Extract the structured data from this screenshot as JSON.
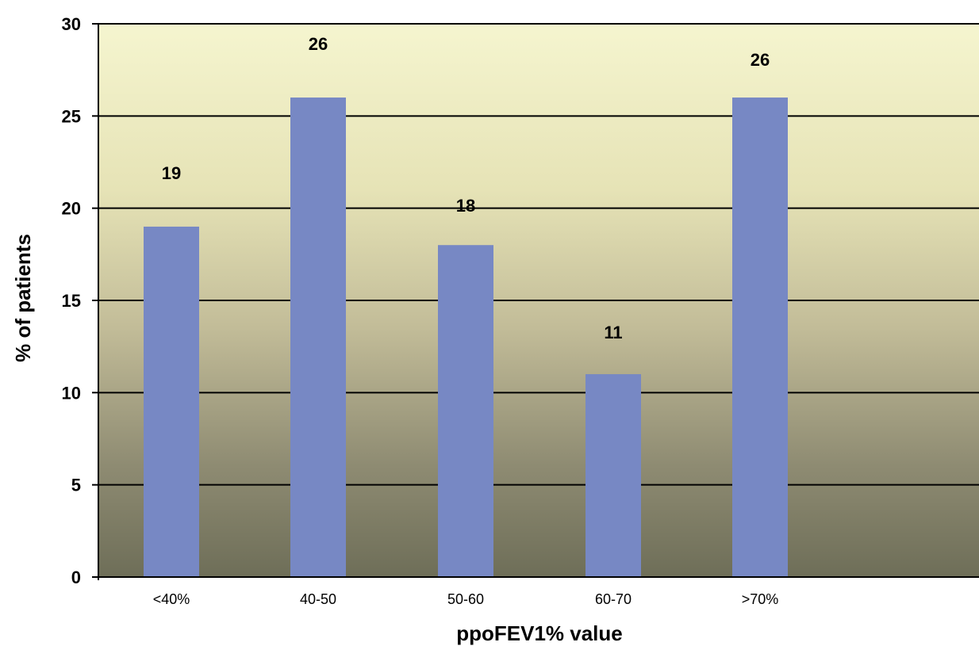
{
  "chart_data": {
    "type": "bar",
    "title": "",
    "xlabel": "ppoFEV1% value",
    "ylabel": "% of patients",
    "ylim": [
      0,
      30
    ],
    "yticks": [
      0,
      5,
      10,
      15,
      20,
      25,
      30
    ],
    "grid": "horizontal",
    "categories": [
      "<40%",
      "40-50",
      "50-60",
      "60-70",
      ">70%"
    ],
    "values": [
      19,
      26,
      18,
      11,
      26
    ],
    "data_labels": [
      "19",
      "26",
      "18",
      "11",
      "26"
    ],
    "colors": {
      "bar": "#7788C4",
      "background_top": "#F5F5CF",
      "background_bottom": "#6E6E58",
      "grid": "#000000"
    }
  }
}
